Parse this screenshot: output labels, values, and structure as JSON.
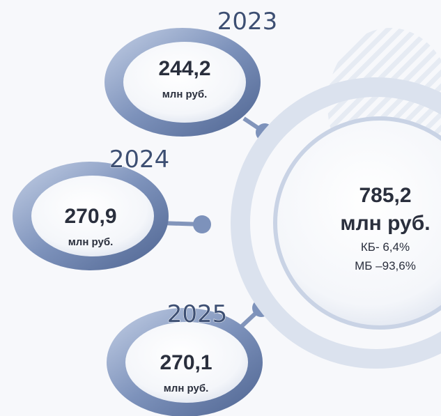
{
  "items": [
    {
      "year": "2023",
      "amount": "244,2",
      "unit": "млн руб."
    },
    {
      "year": "2024",
      "amount": "270,9",
      "unit": "млн руб."
    },
    {
      "year": "2025",
      "amount": "270,1",
      "unit": "млн руб."
    }
  ],
  "total": {
    "amount": "785,2",
    "unit": "млн руб.",
    "notes": [
      "КБ- 6,4%",
      "МБ –93,6%"
    ]
  }
}
